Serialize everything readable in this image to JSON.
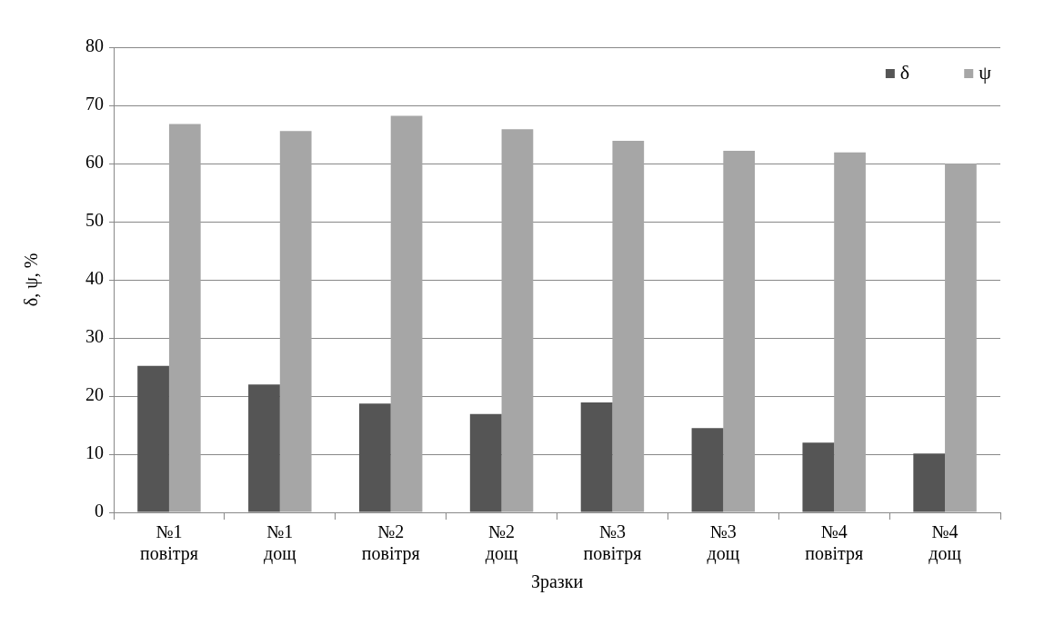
{
  "chart_data": {
    "type": "bar",
    "xlabel": "Зразки",
    "ylabel": "δ, ψ, %",
    "categories": [
      "№1\nповітря",
      "№1\nдощ",
      "№2\nповітря",
      "№2\nдощ",
      "№3\nповітря",
      "№3\nдощ",
      "№4\nповітря",
      "№4\nдощ"
    ],
    "series": [
      {
        "name": "δ",
        "color": "#555555",
        "values": [
          25.2,
          22.0,
          18.7,
          16.9,
          18.9,
          14.5,
          12.0,
          10.1
        ]
      },
      {
        "name": "ψ",
        "color": "#a6a6a6",
        "values": [
          66.8,
          65.6,
          68.2,
          65.9,
          63.9,
          62.2,
          61.9,
          60.0
        ]
      }
    ],
    "ylim": [
      0,
      80
    ],
    "yticks": [
      0,
      10,
      20,
      30,
      40,
      50,
      60,
      70,
      80
    ],
    "grid": "y",
    "legend": "top right"
  }
}
